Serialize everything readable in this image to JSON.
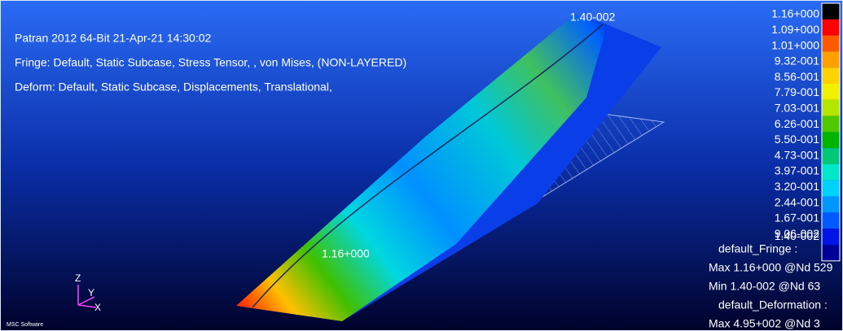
{
  "header": {
    "lines": [
      "Patran 2012 64-Bit 21-Apr-21 14:30:02",
      "Fringe: Default, Static Subcase, Stress Tensor, , von Mises, (NON-LAYERED)",
      "Deform: Default, Static Subcase, Displacements, Translational,"
    ]
  },
  "annotations": {
    "tip": "1.40-002",
    "root": "1.16+000"
  },
  "legend": {
    "items": [
      {
        "label": "1.16+000",
        "color": "#000000"
      },
      {
        "label": "1.09+000",
        "color": "#ff0000"
      },
      {
        "label": "1.01+000",
        "color": "#ff5a00"
      },
      {
        "label": "9.32-001",
        "color": "#ffa000"
      },
      {
        "label": "8.56-001",
        "color": "#ffd200"
      },
      {
        "label": "7.79-001",
        "color": "#f0f000"
      },
      {
        "label": "7.03-001",
        "color": "#b4e600"
      },
      {
        "label": "6.26-001",
        "color": "#50c800"
      },
      {
        "label": "5.50-001",
        "color": "#00b400"
      },
      {
        "label": "4.73-001",
        "color": "#00c878"
      },
      {
        "label": "3.97-001",
        "color": "#00e6c8"
      },
      {
        "label": "3.20-001",
        "color": "#00d2ff"
      },
      {
        "label": "2.44-001",
        "color": "#0096ff"
      },
      {
        "label": "1.67-001",
        "color": "#005aff"
      },
      {
        "label": "9.06-002",
        "color": "#0014e6"
      },
      {
        "label": "1.40-002",
        "color": "#000096"
      }
    ]
  },
  "footer": {
    "lines": [
      "default_Fringe :",
      "Max 1.16+000 @Nd 529",
      "Min 1.40-002 @Nd 63",
      "default_Deformation :",
      "Max 4.95+002 @Nd 3"
    ]
  },
  "triad": {
    "z": "Z",
    "y": "Y",
    "x": "X"
  },
  "logo": "MSC Software"
}
